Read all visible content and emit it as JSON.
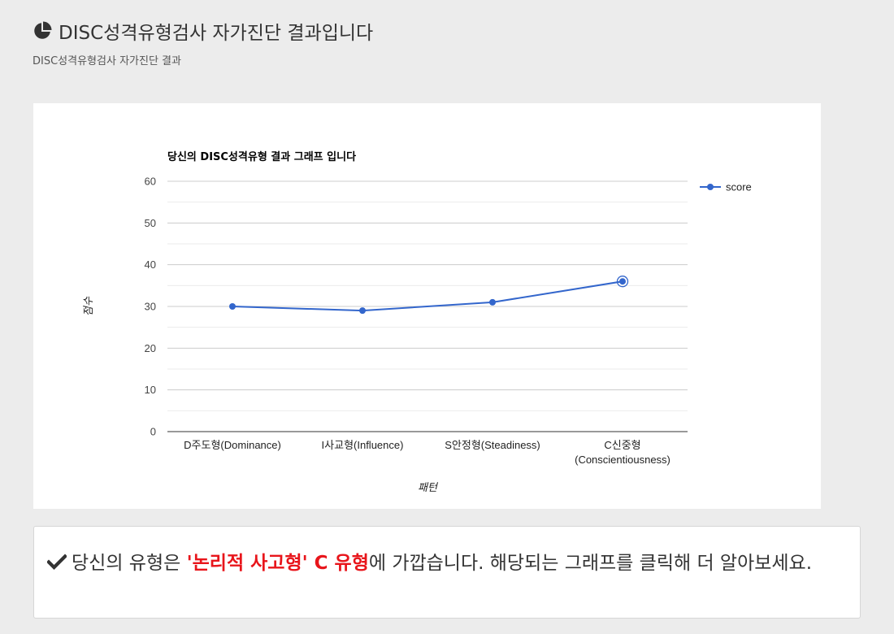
{
  "header": {
    "icon": "pie-chart-icon",
    "title": "DISC성격유형검사 자가진단 결과입니다",
    "subtitle": "DISC성격유형검사 자가진단 결과"
  },
  "chart_data": {
    "type": "line",
    "title": "당신의 DISC성격유형 결과 그래프 입니다",
    "xlabel": "패턴",
    "ylabel": "점수",
    "categories": [
      "D주도형(Dominance)",
      "I사교형(Influence)",
      "S안정형(Steadiness)",
      "C신중형 (Conscientiousness)"
    ],
    "category_lines": [
      [
        "D주도형(Dominance)"
      ],
      [
        "I사교형(Influence)"
      ],
      [
        "S안정형(Steadiness)"
      ],
      [
        "C신중형",
        "(Conscientiousness)"
      ]
    ],
    "series": [
      {
        "name": "score",
        "values": [
          30,
          29,
          31,
          36
        ],
        "color": "#3366cc"
      }
    ],
    "ylim": [
      0,
      60
    ],
    "yticks": [
      0,
      10,
      20,
      30,
      40,
      50,
      60
    ],
    "highlighted_index": 3,
    "grid": true,
    "legend_position": "right"
  },
  "result": {
    "icon": "check-icon",
    "prefix": "당신의 유형은 ",
    "highlight": "'논리적 사고형' C 유형",
    "suffix": "에 가깝습니다. 해당되는 그래프를 클릭해 더 알아보세요.",
    "highlight_color": "#e8151b"
  }
}
